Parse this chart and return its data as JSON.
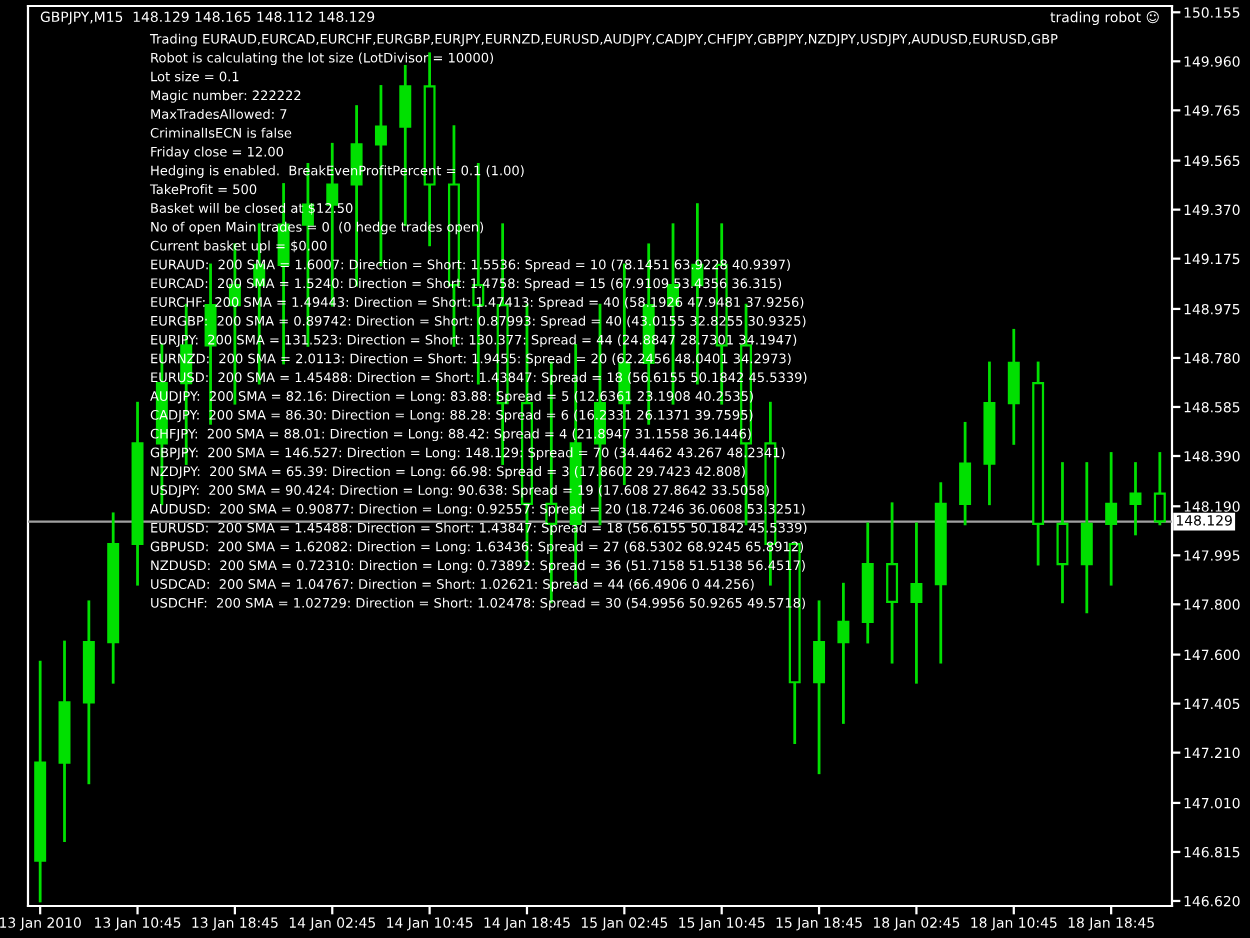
{
  "chart_data": {
    "type": "candlestick",
    "title": "GBPJPY,M15  148.129 148.165 148.112 148.129",
    "subtitle": "trading robot ☺",
    "color": "#00e000",
    "categories": [
      "13 Jan 2010",
      null,
      null,
      null,
      "13 Jan 10:45",
      null,
      null,
      null,
      "13 Jan 18:45",
      null,
      null,
      null,
      "14 Jan 02:45",
      null,
      null,
      null,
      "14 Jan 10:45",
      null,
      null,
      null,
      "14 Jan 18:45",
      null,
      null,
      null,
      "15 Jan 02:45",
      null,
      null,
      null,
      "15 Jan 10:45",
      null,
      null,
      null,
      "15 Jan 18:45",
      null,
      null,
      null,
      "18 Jan 02:45",
      null,
      null,
      null,
      "18 Jan 10:45",
      null,
      null,
      null,
      "18 Jan 18:45",
      null,
      null
    ],
    "ohlc": [
      [
        146.78,
        147.57,
        146.62,
        147.17
      ],
      [
        147.17,
        147.65,
        146.86,
        147.41
      ],
      [
        147.41,
        147.81,
        147.09,
        147.65
      ],
      [
        147.65,
        148.16,
        147.49,
        148.04
      ],
      [
        148.04,
        148.6,
        147.88,
        148.44
      ],
      [
        148.44,
        148.83,
        148.2,
        148.68
      ],
      [
        148.68,
        148.99,
        148.36,
        148.83
      ],
      [
        148.83,
        149.15,
        148.52,
        148.99
      ],
      [
        148.99,
        149.23,
        148.6,
        149.07
      ],
      [
        149.07,
        149.31,
        148.68,
        149.15
      ],
      [
        149.15,
        149.47,
        148.76,
        149.31
      ],
      [
        149.31,
        149.55,
        148.83,
        149.39
      ],
      [
        149.39,
        149.63,
        148.99,
        149.47
      ],
      [
        149.47,
        149.78,
        149.07,
        149.63
      ],
      [
        149.63,
        149.86,
        149.15,
        149.7
      ],
      [
        149.7,
        149.94,
        149.31,
        149.86
      ],
      [
        149.86,
        149.99,
        149.23,
        149.47
      ],
      [
        149.47,
        149.7,
        148.83,
        149.07
      ],
      [
        149.07,
        149.55,
        148.68,
        148.99
      ],
      [
        148.99,
        149.31,
        148.36,
        148.6
      ],
      [
        148.6,
        148.99,
        147.96,
        148.2
      ],
      [
        148.2,
        148.76,
        147.81,
        148.12
      ],
      [
        148.12,
        148.83,
        147.88,
        148.44
      ],
      [
        148.44,
        148.99,
        148.12,
        148.6
      ],
      [
        148.6,
        149.15,
        148.28,
        148.76
      ],
      [
        148.76,
        149.23,
        148.52,
        148.99
      ],
      [
        148.99,
        149.31,
        148.6,
        149.07
      ],
      [
        149.07,
        149.39,
        148.68,
        149.15
      ],
      [
        149.15,
        149.31,
        148.6,
        148.83
      ],
      [
        148.83,
        148.99,
        148.12,
        148.44
      ],
      [
        148.44,
        148.6,
        147.88,
        148.04
      ],
      [
        148.04,
        148.04,
        147.25,
        147.49
      ],
      [
        147.49,
        147.81,
        147.13,
        147.65
      ],
      [
        147.65,
        147.88,
        147.33,
        147.73
      ],
      [
        147.73,
        148.12,
        147.65,
        147.96
      ],
      [
        147.96,
        148.2,
        147.57,
        147.81
      ],
      [
        147.81,
        148.12,
        147.49,
        147.88
      ],
      [
        147.88,
        148.28,
        147.57,
        148.2
      ],
      [
        148.2,
        148.52,
        148.12,
        148.36
      ],
      [
        148.36,
        148.76,
        148.2,
        148.6
      ],
      [
        148.6,
        148.89,
        148.44,
        148.76
      ],
      [
        148.68,
        148.76,
        147.96,
        148.12
      ],
      [
        148.12,
        148.36,
        147.81,
        147.96
      ],
      [
        147.96,
        148.36,
        147.77,
        148.12
      ],
      [
        148.12,
        148.4,
        147.88,
        148.2
      ],
      [
        148.2,
        148.36,
        148.08,
        148.24
      ],
      [
        148.24,
        148.4,
        148.12,
        148.13
      ]
    ],
    "ylim": [
      146.6,
      150.18
    ],
    "yticks": [
      {
        "value": 146.62,
        "label": "146.620"
      },
      146.815,
      {
        "value": 147.01,
        "label": "147.010"
      },
      {
        "value": 147.21,
        "label": "147.210"
      },
      147.405,
      {
        "value": 147.6,
        "label": "147.600"
      },
      {
        "value": 147.8,
        "label": "147.800"
      },
      147.995,
      {
        "value": 148.19,
        "label": "148.190"
      },
      {
        "value": 148.39,
        "label": "148.390"
      },
      148.585,
      {
        "value": 148.78,
        "label": "148.780"
      },
      148.975,
      149.175,
      {
        "value": 149.37,
        "label": "149.370"
      },
      149.565,
      149.765,
      {
        "value": 149.96,
        "label": "149.960"
      },
      150.155
    ],
    "ref_lines": [
      {
        "axis": "y",
        "value": 148.129,
        "label": "148.129",
        "color": "#a0a0a0"
      }
    ],
    "annotations": [
      "Trading EURAUD,EURCAD,EURCHF,EURGBP,EURJPY,EURNZD,EURUSD,AUDJPY,CADJPY,CHFJPY,GBPJPY,NZDJPY,USDJPY,AUDUSD,EURUSD,GBP",
      "Robot is calculating the lot size (LotDivisor = 10000)",
      "Lot size = 0.1",
      "Magic number: 222222",
      "MaxTradesAllowed: 7",
      "CriminalIsECN is false",
      "Friday close = 12.00",
      "Hedging is enabled.  BreakEvenProfitPercent = 0.1 (1.00)",
      "TakeProfit = 500",
      "Basket will be closed at $12.50",
      "No of open Main trades = 0  (0 hedge trades open)",
      "Current basket upl = $0.00",
      "EURAUD:  200 SMA = 1.6007: Direction = Short: 1.5536: Spread = 10 (78.1451 63.9228 40.9397)",
      "EURCAD:  200 SMA = 1.5240: Direction = Short: 1.4758: Spread = 15 (67.9109 53.4356 36.315)",
      "EURCHF:  200 SMA = 1.49443: Direction = Short: 1.47413: Spread = 40 (58.1926 47.9481 37.9256)",
      "EURGBP:  200 SMA = 0.89742: Direction = Short: 0.87993: Spread = 40 (43.0155 32.8255 30.9325)",
      "EURJPY:  200 SMA = 131.523: Direction = Short: 130.377: Spread = 44 (24.8847 28.7301 34.1947)",
      "EURNZD:  200 SMA = 2.0113: Direction = Short: 1.9455: Spread = 20 (62.2456 48.0401 34.2973)",
      "EURUSD:  200 SMA = 1.45488: Direction = Short: 1.43847: Spread = 18 (56.6155 50.1842 45.5339)",
      "AUDJPY:  200 SMA = 82.16: Direction = Long: 83.88: Spread = 5 (12.6361 23.1908 40.2535)",
      "CADJPY:  200 SMA = 86.30: Direction = Long: 88.28: Spread = 6 (16.2331 26.1371 39.7595)",
      "CHFJPY:  200 SMA = 88.01: Direction = Long: 88.42: Spread = 4 (21.8947 31.1558 36.1446)",
      "GBPJPY:  200 SMA = 146.527: Direction = Long: 148.129: Spread = 70 (34.4462 43.267 48.2341)",
      "NZDJPY:  200 SMA = 65.39: Direction = Long: 66.98: Spread = 3 (17.8602 29.7423 42.808)",
      "USDJPY:  200 SMA = 90.424: Direction = Long: 90.638: Spread = 19 (17.608 27.8642 33.5058)",
      "AUDUSD:  200 SMA = 0.90877: Direction = Long: 0.92557: Spread = 20 (18.7246 36.0608 53.3251)",
      "EURUSD:  200 SMA = 1.45488: Direction = Short: 1.43847: Spread = 18 (56.6155 50.1842 45.5339)",
      "GBPUSD:  200 SMA = 1.62082: Direction = Long: 1.63436: Spread = 27 (68.5302 68.9245 65.8912)",
      "NZDUSD:  200 SMA = 0.72310: Direction = Long: 0.73892: Spread = 36 (51.7158 51.5138 56.4517)",
      "USDCAD:  200 SMA = 1.04767: Direction = Short: 1.02621: Spread = 44 (66.4906 0 44.256)",
      "USDCHF:  200 SMA = 1.02729: Direction = Short: 1.02478: Spread = 30 (54.9956 50.9265 49.5718)"
    ]
  }
}
